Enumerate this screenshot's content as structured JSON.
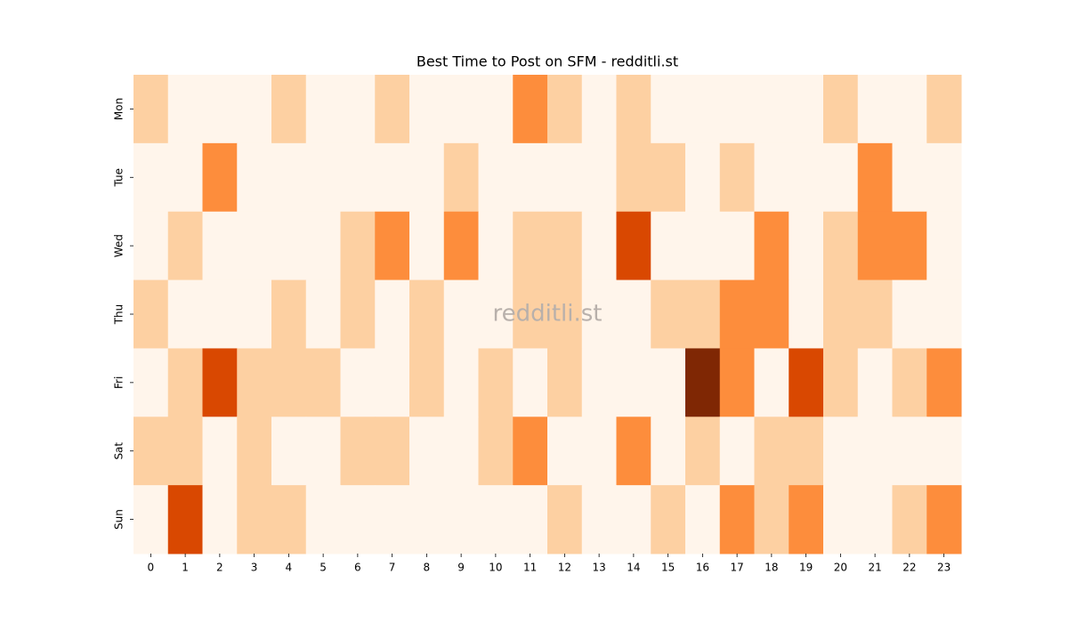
{
  "chart_data": {
    "type": "heatmap",
    "title": "Best Time to Post on SFM - redditli.st",
    "watermark": "redditli.st",
    "x_categories": [
      "0",
      "1",
      "2",
      "3",
      "4",
      "5",
      "6",
      "7",
      "8",
      "9",
      "10",
      "11",
      "12",
      "13",
      "14",
      "15",
      "16",
      "17",
      "18",
      "19",
      "20",
      "21",
      "22",
      "23"
    ],
    "y_categories": [
      "Mon",
      "Tue",
      "Wed",
      "Thu",
      "Fri",
      "Sat",
      "Sun"
    ],
    "values": [
      [
        1,
        0,
        0,
        0,
        1,
        0,
        0,
        1,
        0,
        0,
        0,
        2,
        1,
        0,
        1,
        0,
        0,
        0,
        0,
        0,
        1,
        0,
        0,
        1
      ],
      [
        0,
        0,
        2,
        0,
        0,
        0,
        0,
        0,
        0,
        1,
        0,
        0,
        0,
        0,
        1,
        1,
        0,
        1,
        0,
        0,
        0,
        2,
        0,
        0
      ],
      [
        0,
        1,
        0,
        0,
        0,
        0,
        1,
        2,
        0,
        2,
        0,
        1,
        1,
        0,
        3,
        0,
        0,
        0,
        2,
        0,
        1,
        2,
        2,
        0
      ],
      [
        1,
        0,
        0,
        0,
        1,
        0,
        1,
        0,
        1,
        0,
        0,
        1,
        1,
        0,
        0,
        1,
        1,
        2,
        2,
        0,
        1,
        1,
        0,
        0
      ],
      [
        0,
        1,
        3,
        1,
        1,
        1,
        0,
        0,
        1,
        0,
        1,
        0,
        1,
        0,
        0,
        0,
        4,
        2,
        0,
        3,
        1,
        0,
        1,
        2
      ],
      [
        1,
        1,
        0,
        1,
        0,
        0,
        1,
        1,
        0,
        0,
        1,
        2,
        0,
        0,
        2,
        0,
        1,
        0,
        1,
        1,
        0,
        0,
        0,
        0
      ],
      [
        0,
        3,
        0,
        1,
        1,
        0,
        0,
        0,
        0,
        0,
        0,
        0,
        1,
        0,
        0,
        1,
        0,
        2,
        1,
        2,
        0,
        0,
        1,
        2
      ]
    ],
    "colorscale": [
      "#fff5eb",
      "#fdd0a2",
      "#fd8d3c",
      "#d94801",
      "#7f2704"
    ]
  }
}
